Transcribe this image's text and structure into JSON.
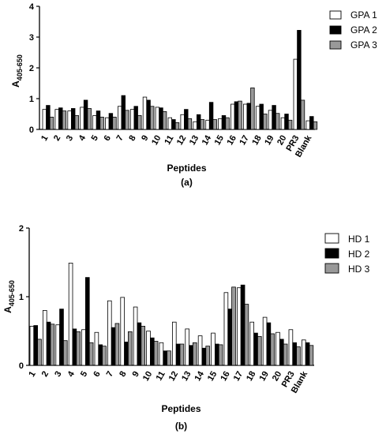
{
  "figure": {
    "panels": [
      "(a)",
      "(b)"
    ]
  },
  "chart_data": [
    {
      "type": "bar",
      "panel_label": "(a)",
      "ylabel_main": "A",
      "ylabel_sub": "405-650",
      "xlabel": "Peptides",
      "categories": [
        "1",
        "2",
        "3",
        "4",
        "5",
        "6",
        "7",
        "8",
        "9",
        "10",
        "11",
        "12",
        "13",
        "14",
        "15",
        "16",
        "17",
        "18",
        "19",
        "20",
        "PR3",
        "Blank"
      ],
      "ylim": [
        0,
        4
      ],
      "yticks": [
        "0",
        "1",
        "2",
        "3",
        "4"
      ],
      "legend_position": "top-right",
      "series": [
        {
          "name": "GPA 1",
          "color": "#ffffff",
          "values": [
            0.65,
            0.65,
            0.6,
            0.72,
            0.45,
            0.38,
            0.75,
            0.65,
            1.05,
            0.72,
            0.38,
            0.48,
            0.25,
            0.3,
            0.35,
            0.82,
            0.82,
            0.75,
            0.62,
            0.38,
            2.28,
            0.28
          ]
        },
        {
          "name": "GPA 2",
          "color": "#000000",
          "values": [
            0.78,
            0.7,
            0.68,
            0.95,
            0.6,
            0.52,
            1.1,
            0.75,
            0.95,
            0.7,
            0.32,
            0.65,
            0.48,
            0.88,
            0.45,
            0.9,
            0.85,
            0.82,
            0.78,
            0.5,
            3.22,
            0.42
          ]
        },
        {
          "name": "GPA 3",
          "color": "#999999",
          "values": [
            0.4,
            0.6,
            0.45,
            0.68,
            0.4,
            0.4,
            0.62,
            0.45,
            0.75,
            0.58,
            0.22,
            0.35,
            0.32,
            0.32,
            0.38,
            0.92,
            1.35,
            0.5,
            0.52,
            0.3,
            0.95,
            0.25
          ]
        }
      ]
    },
    {
      "type": "bar",
      "panel_label": "(b)",
      "ylabel_main": "A",
      "ylabel_sub": "405-650",
      "xlabel": "Peptides",
      "categories": [
        "1",
        "2",
        "3",
        "4",
        "5",
        "6",
        "7",
        "8",
        "9",
        "10",
        "11",
        "12",
        "13",
        "14",
        "15",
        "16",
        "17",
        "18",
        "19",
        "20",
        "PR3",
        "Blank"
      ],
      "ylim": [
        0,
        2
      ],
      "yticks": [
        "0",
        "1",
        "2"
      ],
      "legend_position": "top-right",
      "series": [
        {
          "name": "HD 1",
          "color": "#ffffff",
          "values": [
            0.57,
            0.8,
            0.59,
            1.49,
            0.52,
            0.48,
            0.94,
            0.99,
            0.85,
            0.5,
            0.33,
            0.63,
            0.53,
            0.43,
            0.47,
            1.06,
            1.13,
            0.63,
            0.7,
            0.48,
            0.52,
            0.37
          ]
        },
        {
          "name": "HD 2",
          "color": "#000000",
          "values": [
            0.58,
            0.63,
            0.82,
            0.53,
            1.28,
            0.3,
            0.55,
            0.34,
            0.62,
            0.4,
            0.21,
            0.31,
            0.29,
            0.25,
            0.31,
            0.82,
            1.17,
            0.47,
            0.62,
            0.38,
            0.33,
            0.33
          ]
        },
        {
          "name": "HD 3",
          "color": "#999999",
          "values": [
            0.38,
            0.6,
            0.36,
            0.49,
            0.33,
            0.28,
            0.61,
            0.49,
            0.57,
            0.35,
            0.21,
            0.31,
            0.33,
            0.28,
            0.3,
            1.14,
            0.89,
            0.42,
            0.46,
            0.31,
            0.27,
            0.29
          ]
        }
      ]
    }
  ]
}
